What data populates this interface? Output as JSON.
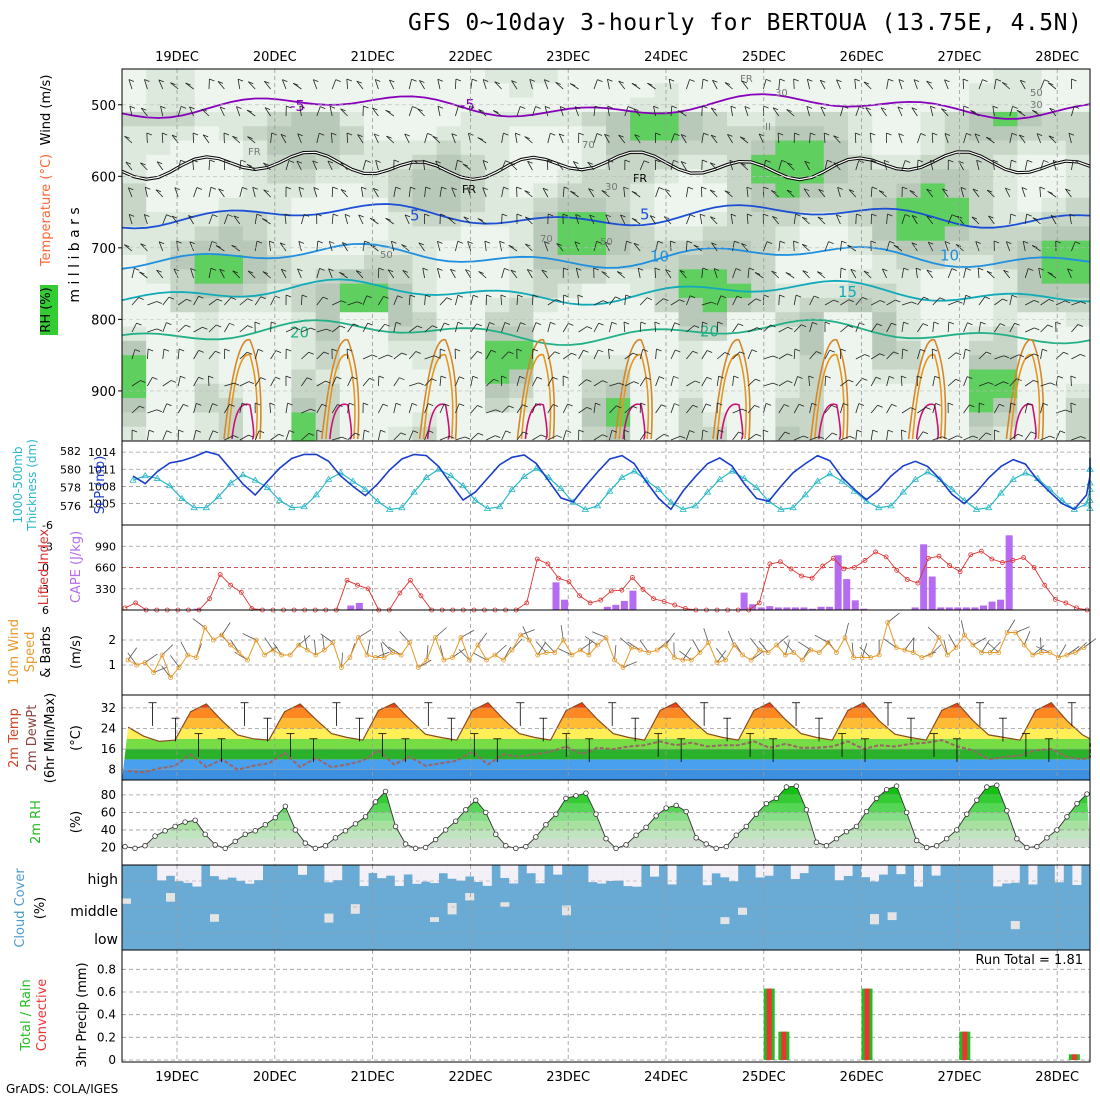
{
  "title": "GFS 0~10day 3-hourly for BERTOUA (13.75E, 4.5N)",
  "credit": "GrADS: COLA/IGES",
  "chart_data": [
    {
      "panel": "upper_air",
      "type": "heatmap",
      "x_dates": [
        "19DEC",
        "20DEC",
        "21DEC",
        "22DEC",
        "23DEC",
        "24DEC",
        "25DEC",
        "26DEC",
        "27DEC",
        "28DEC"
      ],
      "ylabel": "millibars",
      "yticks": [
        500,
        600,
        700,
        800,
        900
      ],
      "ylim": [
        970,
        450
      ],
      "legend": [
        "Wind (m/s)",
        "Temperature (°C)",
        "RH (%)"
      ],
      "legend_colors": [
        "#000000",
        "#ff6633",
        "#33cc33"
      ],
      "temperature_isotherms": [
        {
          "label": "-5",
          "pressure": 502,
          "color": "#8800bb"
        },
        {
          "label": "5",
          "pressure": 655,
          "color": "#1c4fd6"
        },
        {
          "label": "10",
          "pressure": 712,
          "color": "#1f8fe0"
        },
        {
          "label": "15",
          "pressure": 762,
          "color": "#11aab8"
        },
        {
          "label": "20",
          "pressure": 818,
          "color": "#22b088"
        }
      ],
      "annotations": [
        "FR",
        "FR",
        "30",
        "30",
        "30",
        "50",
        "50",
        "50",
        "70",
        "70",
        "II"
      ]
    },
    {
      "panel": "thickness_slp",
      "type": "line",
      "ylabel_left": "1000-500mb Thickness (dm)",
      "ylabel_right": "SLP (mb)",
      "left_ticks": [
        "582",
        "580",
        "578",
        "576"
      ],
      "right_ticks": [
        "1014",
        "1011",
        "1008",
        "1005"
      ],
      "left_range": [
        575,
        582
      ],
      "right_range": [
        1003,
        1014.2
      ],
      "series": [
        {
          "name": "Thickness",
          "color": "#2ab8c8",
          "values": [
            578.8,
            579.3,
            579.0,
            578.2,
            576.8,
            575.8,
            575.8,
            577.0,
            578.5,
            579.4,
            578.8,
            578.0,
            576.6,
            575.8,
            575.9,
            577.2,
            578.9,
            579.6,
            578.7,
            577.8,
            576.5,
            575.6,
            575.8,
            577.5,
            579.1,
            580.0,
            579.3,
            578.2,
            576.6,
            575.7,
            575.9,
            577.8,
            579.2,
            580.1,
            579.1,
            577.9,
            576.4,
            575.6,
            576.0,
            577.6,
            579.1,
            579.8,
            578.8,
            577.8,
            576.4,
            575.6,
            576.0,
            577.5,
            578.9,
            579.8,
            579.0,
            578.0,
            576.5,
            575.6,
            575.8,
            577.2,
            578.7,
            579.5,
            578.7,
            577.6,
            576.5,
            575.8,
            576.0,
            577.5,
            578.9,
            579.7,
            578.9,
            577.8,
            576.6,
            575.6,
            575.8,
            577.4,
            578.9,
            579.6,
            579.0,
            577.8,
            576.6,
            575.6,
            576.2,
            577.8,
            580.0,
            580.0,
            578.5,
            576.6,
            575.7
          ]
        },
        {
          "name": "SLP",
          "color": "#1a3ecb",
          "values": [
            1009.8,
            1008.5,
            1010.6,
            1012.1,
            1012.5,
            1013.2,
            1014.1,
            1013.5,
            1011.0,
            1008.4,
            1006.5,
            1008.9,
            1011.2,
            1012.9,
            1013.6,
            1013.6,
            1012.4,
            1009.8,
            1008.0,
            1006.4,
            1008.4,
            1010.9,
            1012.8,
            1013.6,
            1013.4,
            1011.5,
            1008.5,
            1005.6,
            1007.0,
            1009.4,
            1011.8,
            1013.1,
            1013.5,
            1012.0,
            1009.0,
            1006.0,
            1005.3,
            1008.0,
            1010.5,
            1012.8,
            1013.4,
            1012.0,
            1008.8,
            1005.9,
            1004.0,
            1007.2,
            1009.7,
            1012.0,
            1013.0,
            1011.6,
            1008.5,
            1005.9,
            1005.4,
            1008.0,
            1010.4,
            1012.0,
            1013.4,
            1012.5,
            1009.6,
            1007.5,
            1005.7,
            1007.4,
            1009.8,
            1011.6,
            1012.4,
            1011.5,
            1009.3,
            1006.6,
            1005.0,
            1007.0,
            1009.5,
            1011.5,
            1012.7,
            1011.9,
            1009.1,
            1007.0,
            1005.0,
            1004.0,
            1006.5,
            1009.8,
            1011.8,
            1012.6,
            1011.9,
            1010.0,
            1013.0
          ]
        }
      ]
    },
    {
      "panel": "cape_li",
      "type": "bar",
      "ylabel_left": "Lifted Index",
      "ylabel_right": "CAPE (J/kg)",
      "left_ticks": [
        "-6",
        "-3",
        "0",
        "3",
        "6"
      ],
      "right_ticks": [
        "990",
        "660",
        "330"
      ],
      "left_range": [
        6,
        -6
      ],
      "right_range": [
        0,
        1320
      ],
      "series": [
        {
          "name": "CAPE",
          "color": "#b56cf0",
          "values": [
            0,
            0,
            0,
            0,
            0,
            0,
            0,
            0,
            20,
            0,
            0,
            0,
            0,
            0,
            0,
            0,
            0,
            0,
            0,
            0,
            0,
            0,
            0,
            0,
            0,
            0,
            70,
            110,
            0,
            0,
            0,
            0,
            0,
            0,
            0,
            0,
            0,
            0,
            0,
            0,
            0,
            0,
            0,
            0,
            0,
            0,
            0,
            0,
            0,
            0,
            430,
            160,
            0,
            0,
            0,
            0,
            50,
            80,
            140,
            300,
            0,
            0,
            0,
            0,
            0,
            0,
            0,
            0,
            0,
            0,
            0,
            0,
            270,
            90,
            40,
            60,
            40,
            40,
            40,
            40,
            20,
            50,
            50,
            850,
            480,
            150,
            20,
            0,
            0,
            0,
            0,
            0,
            40,
            1020,
            520,
            40,
            40,
            40,
            40,
            40,
            70,
            130,
            160,
            1160,
            0,
            0,
            0,
            0,
            0,
            0,
            0,
            0,
            0,
            0,
            0,
            0,
            0,
            0
          ]
        },
        {
          "name": "Lifted Index",
          "color": "#dd3333",
          "values": [
            5.7,
            5.0,
            6.0,
            6.0,
            6.0,
            6.0,
            6.0,
            6.0,
            4.4,
            1.0,
            2.5,
            3.5,
            5.8,
            6.0,
            6.0,
            6.0,
            6.0,
            6.0,
            6.0,
            6.0,
            6.0,
            1.8,
            2.5,
            3.0,
            6.0,
            6.0,
            3.6,
            1.8,
            4.0,
            6.0,
            6.0,
            6.0,
            6.0,
            6.0,
            6.0,
            6.0,
            6.0,
            6.0,
            5.0,
            -1.2,
            -0.5,
            1.5,
            2.0,
            4.0,
            5.0,
            4.6,
            3.3,
            3.2,
            1.4,
            3.1,
            4.4,
            4.8,
            5.3,
            5.8,
            6.0,
            6.0,
            6.0,
            6.0,
            6.0,
            6.0,
            5.0,
            -0.5,
            -0.8,
            0.2,
            1.2,
            1.5,
            -0.2,
            -1.3,
            0.2,
            0.0,
            -1.0,
            -2.2,
            -1.5,
            0.4,
            1.7,
            2.2,
            -1.3,
            -1.6,
            -0.3,
            0.6,
            -1.8,
            -2.3,
            -1.2,
            -0.7,
            -1.0,
            -1.4,
            0.0,
            2.5,
            4.5,
            5.0,
            5.7,
            6.0
          ]
        }
      ]
    },
    {
      "panel": "wind10m",
      "type": "line",
      "ylabel": "10m Wind Speed & Barbs (m/s)",
      "ticks": [
        "2",
        "1"
      ],
      "yrange": [
        0,
        3
      ],
      "series": [
        {
          "name": "10m Wind Speed",
          "color": "#e69a2a",
          "values": [
            1.2,
            1.0,
            1.1,
            0.7,
            1.4,
            0.5,
            0.9,
            1.4,
            1.3,
            2.5,
            2.0,
            2.2,
            1.8,
            1.5,
            1.2,
            2.0,
            1.4,
            1.6,
            1.4,
            1.4,
            1.8,
            1.6,
            1.4,
            1.6,
            1.9,
            0.9,
            1.3,
            2.1,
            1.4,
            1.3,
            1.3,
            1.5,
            1.4,
            1.9,
            0.9,
            1.2,
            2.1,
            1.2,
            1.3,
            2.1,
            1.2,
            1.8,
            1.2,
            1.4,
            1.2,
            1.6,
            2.2,
            2.0,
            1.4,
            1.5,
            1.5,
            2.0,
            1.4,
            1.6,
            1.4,
            1.8,
            2.1,
            1.2,
            0.9,
            1.7,
            1.6,
            1.5,
            1.6,
            1.8,
            1.3,
            1.2,
            1.2,
            1.5,
            1.9,
            1.1,
            1.2,
            1.8,
            1.4,
            1.2,
            1.6,
            1.5,
            1.8,
            1.4,
            1.5,
            1.2,
            1.6,
            1.5,
            1.9,
            1.5,
            2.1,
            1.3,
            1.3,
            1.3,
            1.4,
            2.7,
            1.7,
            1.6,
            1.5,
            1.3,
            1.4,
            2.1,
            1.4,
            1.7,
            2.2,
            1.8,
            1.5,
            1.5,
            1.5,
            2.3,
            2.3,
            1.8,
            1.4,
            1.5,
            1.5,
            1.3,
            1.4,
            1.5,
            1.7
          ]
        }
      ]
    },
    {
      "panel": "temperature",
      "type": "area",
      "ylabel": "2m Temp 2m DewPt (6hr Min/Max) (°C)",
      "ticks": [
        "32",
        "24",
        "16",
        "8"
      ],
      "yrange": [
        4,
        37
      ],
      "series": [
        {
          "name": "2m Temp",
          "color": "#d06b18",
          "values": [
            24.5,
            21.0,
            19.0,
            19.5,
            30.5,
            33.5,
            27.0,
            21.5,
            20.0,
            19.5,
            30.5,
            33.5,
            27.5,
            22.0,
            20.5,
            19.5,
            31.0,
            33.8,
            27.5,
            21.8,
            20.5,
            19.5,
            31.0,
            34.0,
            27.5,
            22.0,
            20.5,
            19.5,
            31.0,
            34.0,
            27.5,
            22.0,
            20.5,
            19.5,
            31.0,
            34.0,
            27.5,
            22.0,
            20.5,
            19.5,
            31.0,
            34.0,
            27.5,
            22.0,
            20.5,
            19.5,
            31.0,
            34.0,
            27.0,
            21.8,
            20.5,
            19.5,
            31.0,
            33.8,
            27.0,
            21.5,
            20.5,
            19.5,
            31.0,
            34.0,
            27.0,
            21.5,
            20.0,
            19.5
          ]
        },
        {
          "name": "2m DewPt",
          "color": "#996666",
          "values": [
            7.5,
            7.0,
            8.5,
            9.5,
            14.0,
            9.0,
            12.0,
            8.0,
            9.5,
            10.5,
            14.5,
            9.0,
            12.5,
            9.0,
            10.0,
            11.5,
            15.5,
            10.0,
            13.0,
            9.5,
            10.5,
            11.5,
            15.0,
            10.0,
            14.0,
            13.0,
            14.0,
            15.0,
            17.0,
            14.0,
            16.5,
            16.0,
            17.0,
            17.5,
            19.0,
            17.5,
            18.5,
            17.0,
            17.5,
            17.5,
            19.0,
            16.5,
            18.0,
            16.5,
            16.5,
            17.0,
            19.0,
            16.0,
            17.5,
            17.0,
            18.0,
            18.5,
            19.5,
            17.0,
            15.5,
            12.0,
            13.0,
            13.5,
            15.5,
            16.0,
            13.0,
            12.0,
            13.0,
            18.5
          ]
        },
        {
          "name": "6hr Max",
          "color": "#000000",
          "values": [
            34,
            28,
            22,
            20,
            34,
            28,
            22,
            20,
            34,
            28,
            22,
            20,
            34,
            28,
            22,
            20,
            34,
            28,
            22,
            20,
            34,
            28,
            22,
            20,
            34,
            28,
            22,
            20,
            34,
            28,
            22,
            20,
            34,
            28,
            22,
            20,
            34,
            28,
            22,
            20,
            34,
            28,
            22,
            20
          ]
        }
      ]
    },
    {
      "panel": "rh2m",
      "type": "area",
      "ylabel": "2m RH (%)",
      "ticks": [
        "80",
        "60",
        "40",
        "20"
      ],
      "yrange": [
        0,
        97
      ],
      "series": [
        {
          "name": "2m RH",
          "color": "#22bb22",
          "values": [
            21,
            19,
            22,
            33,
            39,
            44,
            49,
            51,
            35,
            23,
            19,
            27,
            35,
            39,
            46,
            54,
            67,
            40,
            25,
            19,
            22,
            31,
            39,
            47,
            55,
            72,
            84,
            44,
            24,
            19,
            20,
            29,
            40,
            50,
            63,
            74,
            60,
            35,
            22,
            19,
            21,
            32,
            46,
            58,
            76,
            79,
            82,
            58,
            30,
            19,
            23,
            34,
            43,
            56,
            65,
            68,
            61,
            31,
            24,
            19,
            21,
            34,
            44,
            58,
            70,
            76,
            89,
            90,
            63,
            26,
            22,
            30,
            38,
            44,
            61,
            76,
            86,
            90,
            60,
            28,
            20,
            22,
            30,
            40,
            58,
            74,
            89,
            91,
            62,
            30,
            20,
            21,
            31,
            40,
            55,
            70,
            81
          ]
        }
      ]
    },
    {
      "panel": "cloud_cover",
      "type": "heatmap",
      "ylabel": "Cloud Cover (%)",
      "levels": [
        "high",
        "middle",
        "low"
      ],
      "color": "#6aabd6"
    },
    {
      "panel": "precip",
      "type": "bar",
      "ylabel": "3hr Precip (mm)",
      "legend": [
        "Total / Rain",
        "Convective"
      ],
      "legend_colors": [
        "#22bb22",
        "#ee3333"
      ],
      "run_total_label": "Run Total = 1.81",
      "ticks": [
        "0.8",
        "0.6",
        "0.4",
        "0.2",
        "0"
      ],
      "yrange": [
        0,
        0.9
      ],
      "bars": [
        {
          "day": 6.05,
          "value": 0.63
        },
        {
          "day": 6.2,
          "value": 0.25
        },
        {
          "day": 7.05,
          "value": 0.63
        },
        {
          "day": 8.05,
          "value": 0.25
        },
        {
          "day": 9.17,
          "value": 0.05
        }
      ]
    }
  ]
}
